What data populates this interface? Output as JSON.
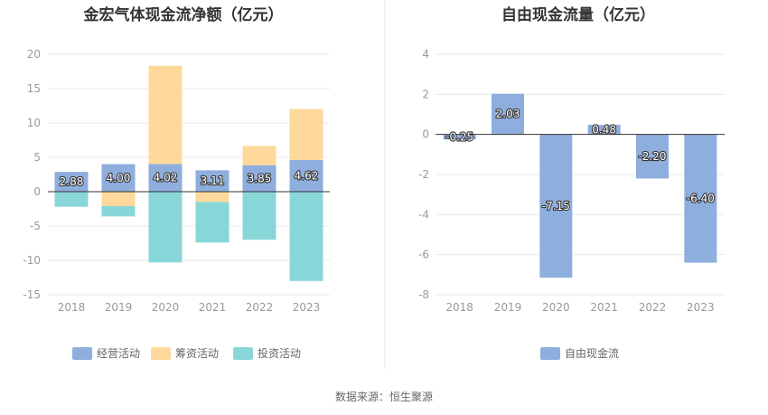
{
  "colors": {
    "operating": "#8eaedd",
    "financing": "#fed99b",
    "investing": "#89d6d8",
    "fcf": "#8eaedd",
    "grid": "#e8e8e8",
    "axis": "#333333",
    "divider": "#e6e6e6"
  },
  "source_text": "数据来源：恒生聚源",
  "chart_data": [
    {
      "type": "bar",
      "stacked": true,
      "title": "金宏气体现金流净额（亿元）",
      "categories": [
        "2018",
        "2019",
        "2020",
        "2021",
        "2022",
        "2023"
      ],
      "ylim": [
        -15,
        20
      ],
      "yticks": [
        20,
        15,
        10,
        5,
        0,
        -5,
        -10,
        -15
      ],
      "legend_position": "bottom",
      "grid": true,
      "series": [
        {
          "name": "经营活动",
          "color_key": "operating",
          "values": [
            2.88,
            4.0,
            4.02,
            3.11,
            3.85,
            4.62
          ],
          "labels": [
            "2.88",
            "4.00",
            "4.02",
            "3.11",
            "3.85",
            "4.62"
          ]
        },
        {
          "name": "筹资活动",
          "color_key": "financing",
          "values": [
            0,
            -2.1,
            14.3,
            -1.5,
            2.8,
            7.4
          ]
        },
        {
          "name": "投资活动",
          "color_key": "investing",
          "values": [
            -2.2,
            -1.5,
            -10.3,
            -5.9,
            -7.0,
            -13.0
          ]
        }
      ]
    },
    {
      "type": "bar",
      "title": "自由现金流量（亿元）",
      "categories": [
        "2018",
        "2019",
        "2020",
        "2021",
        "2022",
        "2023"
      ],
      "ylim": [
        -8,
        4
      ],
      "yticks": [
        4,
        2,
        0,
        -2,
        -4,
        -6,
        -8
      ],
      "legend_position": "bottom",
      "grid": true,
      "series": [
        {
          "name": "自由现金流",
          "color_key": "fcf",
          "values": [
            -0.25,
            2.03,
            -7.15,
            0.48,
            -2.2,
            -6.4
          ],
          "labels": [
            "-0.25",
            "2.03",
            "-7.15",
            "0.48",
            "-2.20",
            "-6.40"
          ]
        }
      ]
    }
  ]
}
